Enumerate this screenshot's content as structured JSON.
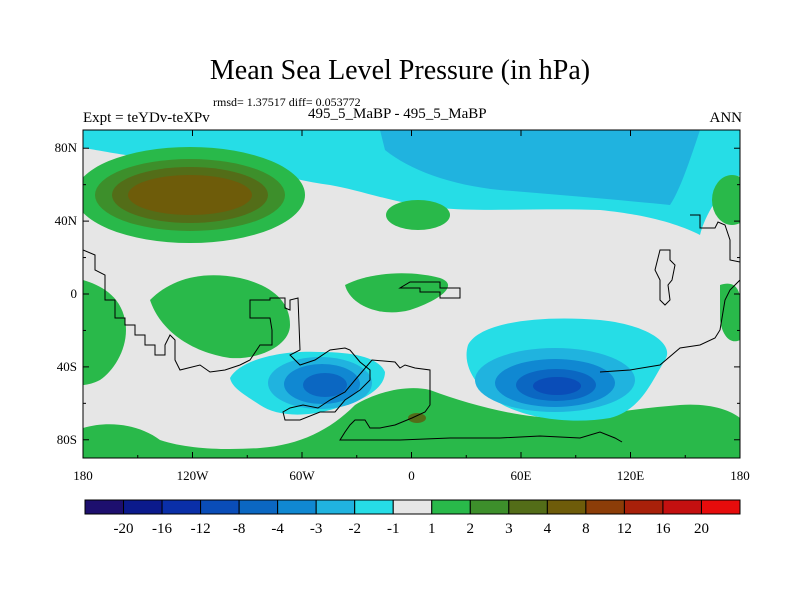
{
  "chart_data": {
    "type": "contour_map",
    "title": "Mean Sea Level Pressure (in hPa)",
    "stats_text": "rmsd= 1.37517 diff= 0.053772",
    "left_label": "Expt = teYDv-teXPv",
    "center_label": "495_5_MaBP - 495_5_MaBP",
    "right_label": "ANN",
    "xlim": [
      -180,
      180
    ],
    "ylim": [
      -90,
      90
    ],
    "x_ticks": [
      {
        "value": -180,
        "label": "180"
      },
      {
        "value": -120,
        "label": "120W"
      },
      {
        "value": -60,
        "label": "60W"
      },
      {
        "value": 0,
        "label": "0"
      },
      {
        "value": 60,
        "label": "60E"
      },
      {
        "value": 120,
        "label": "120E"
      },
      {
        "value": 180,
        "label": "180"
      }
    ],
    "y_ticks": [
      {
        "value": 80,
        "label": "80N"
      },
      {
        "value": 40,
        "label": "40N"
      },
      {
        "value": 0,
        "label": "0"
      },
      {
        "value": -40,
        "label": "40S"
      },
      {
        "value": -80,
        "label": "80S"
      }
    ],
    "colorbar": {
      "levels": [
        "-20",
        "-16",
        "-12",
        "-8",
        "-4",
        "-3",
        "-2",
        "-1",
        "1",
        "2",
        "3",
        "4",
        "8",
        "12",
        "16",
        "20"
      ],
      "colors": [
        "#1d0f6e",
        "#0b1a8c",
        "#0a2fa8",
        "#0a4db8",
        "#0b67c2",
        "#1088d2",
        "#20b3df",
        "#26dde6",
        "#e6e6e6",
        "#29b94a",
        "#3d8f2b",
        "#536d18",
        "#6e5c0a",
        "#8c3d08",
        "#a8200a",
        "#c41010",
        "#e60c0c"
      ]
    }
  }
}
